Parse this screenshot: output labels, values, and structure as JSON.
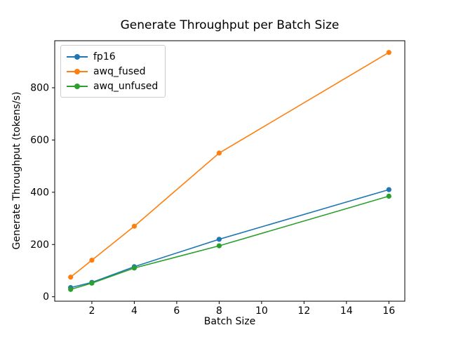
{
  "figure": {
    "background": "#ffffff",
    "axes_edge_color": "#000000",
    "tick_color": "#000000",
    "legend_border_color": "#cccccc"
  },
  "chart_data": {
    "type": "line",
    "title": "Generate Throughput per Batch Size",
    "xlabel": "Batch Size",
    "ylabel": "Generate Throughput (tokens/s)",
    "x": [
      1,
      2,
      4,
      8,
      16
    ],
    "series": [
      {
        "name": "fp16",
        "color": "#1f77b4",
        "marker": "o",
        "values": [
          35,
          55,
          115,
          220,
          410
        ]
      },
      {
        "name": "awq_fused",
        "color": "#ff7f0e",
        "marker": "o",
        "values": [
          75,
          140,
          270,
          550,
          935
        ]
      },
      {
        "name": "awq_unfused",
        "color": "#2ca02c",
        "marker": "o",
        "values": [
          28,
          52,
          110,
          195,
          385
        ]
      }
    ],
    "xticks": [
      2,
      4,
      6,
      8,
      10,
      12,
      14,
      16
    ],
    "yticks": [
      0,
      200,
      400,
      600,
      800
    ],
    "xlim": [
      0.25,
      16.75
    ],
    "ylim": [
      -17,
      980
    ],
    "grid": false,
    "legend_position": "upper left"
  }
}
